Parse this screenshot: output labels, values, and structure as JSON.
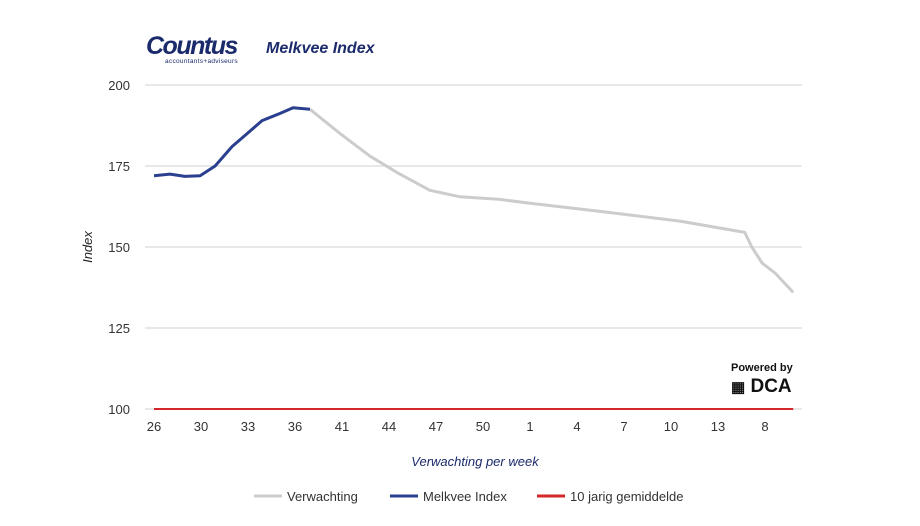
{
  "header": {
    "logo_text": "Countus",
    "logo_subtext": "accountants+adviseurs",
    "title": "Melkvee Index"
  },
  "watermark": {
    "powered_by": "Powered by",
    "brand": "DCA"
  },
  "chart_data": {
    "type": "line",
    "title": "Melkvee Index",
    "xlabel": "Verwachting per week",
    "ylabel": "Index",
    "ylim": [
      100,
      200
    ],
    "yticks": [
      100,
      125,
      150,
      175,
      200
    ],
    "xtick_labels": [
      "26",
      "30",
      "33",
      "36",
      "41",
      "44",
      "47",
      "50",
      "1",
      "4",
      "7",
      "10",
      "13",
      "8"
    ],
    "grid": true,
    "legend_position": "bottom",
    "series": [
      {
        "name": "Verwachting",
        "color": "#cccccc",
        "points": [
          [
            3.32,
            192.5
          ],
          [
            3.96,
            185
          ],
          [
            4.6,
            178
          ],
          [
            5.23,
            172.5
          ],
          [
            5.87,
            167.5
          ],
          [
            6.51,
            165.5
          ],
          [
            7.36,
            164.7
          ],
          [
            8,
            163.5
          ],
          [
            9.49,
            161
          ],
          [
            11.19,
            158
          ],
          [
            12.57,
            154.5
          ],
          [
            12.72,
            150
          ],
          [
            12.94,
            145
          ],
          [
            13.21,
            142
          ],
          [
            13.6,
            136
          ]
        ]
      },
      {
        "name": "Melkvee Index",
        "color": "#2b3f8f",
        "points": [
          [
            0,
            172
          ],
          [
            0.34,
            172.5
          ],
          [
            0.66,
            171.8
          ],
          [
            0.98,
            172
          ],
          [
            1.3,
            175
          ],
          [
            1.66,
            181
          ],
          [
            1.98,
            185
          ],
          [
            2.3,
            189
          ],
          [
            2.64,
            191
          ],
          [
            2.96,
            193
          ],
          [
            3.32,
            192.5
          ]
        ]
      },
      {
        "name": "10 jarig gemiddelde",
        "color": "#d62728",
        "points": [
          [
            0,
            100
          ],
          [
            13.6,
            100
          ]
        ]
      }
    ]
  }
}
